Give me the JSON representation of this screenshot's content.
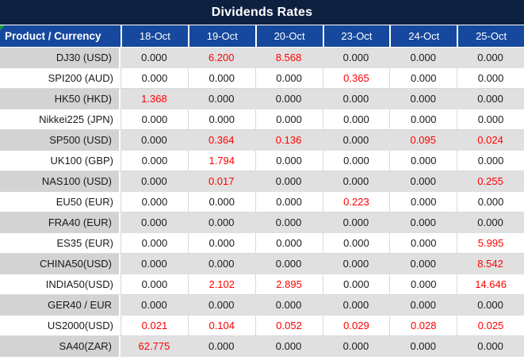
{
  "title": "Dividends Rates",
  "table": {
    "product_header": "Product / Currency",
    "date_headers": [
      "18-Oct",
      "19-Oct",
      "20-Oct",
      "23-Oct",
      "24-Oct",
      "25-Oct"
    ],
    "rows": [
      {
        "product": "DJ30 (USD)",
        "values": [
          "0.000",
          "6.200",
          "8.568",
          "0.000",
          "0.000",
          "0.000"
        ]
      },
      {
        "product": "SPI200 (AUD)",
        "values": [
          "0.000",
          "0.000",
          "0.000",
          "0.365",
          "0.000",
          "0.000"
        ]
      },
      {
        "product": "HK50 (HKD)",
        "values": [
          "1.368",
          "0.000",
          "0.000",
          "0.000",
          "0.000",
          "0.000"
        ]
      },
      {
        "product": "Nikkei225 (JPN)",
        "values": [
          "0.000",
          "0.000",
          "0.000",
          "0.000",
          "0.000",
          "0.000"
        ]
      },
      {
        "product": "SP500 (USD)",
        "values": [
          "0.000",
          "0.364",
          "0.136",
          "0.000",
          "0.095",
          "0.024"
        ]
      },
      {
        "product": "UK100 (GBP)",
        "values": [
          "0.000",
          "1.794",
          "0.000",
          "0.000",
          "0.000",
          "0.000"
        ]
      },
      {
        "product": "NAS100 (USD)",
        "values": [
          "0.000",
          "0.017",
          "0.000",
          "0.000",
          "0.000",
          "0.255"
        ]
      },
      {
        "product": "EU50 (EUR)",
        "values": [
          "0.000",
          "0.000",
          "0.000",
          "0.223",
          "0.000",
          "0.000"
        ]
      },
      {
        "product": "FRA40 (EUR)",
        "values": [
          "0.000",
          "0.000",
          "0.000",
          "0.000",
          "0.000",
          "0.000"
        ]
      },
      {
        "product": "ES35 (EUR)",
        "values": [
          "0.000",
          "0.000",
          "0.000",
          "0.000",
          "0.000",
          "5.995"
        ]
      },
      {
        "product": "CHINA50(USD)",
        "values": [
          "0.000",
          "0.000",
          "0.000",
          "0.000",
          "0.000",
          "8.542"
        ]
      },
      {
        "product": "INDIA50(USD)",
        "values": [
          "0.000",
          "2.102",
          "2.895",
          "0.000",
          "0.000",
          "14.646"
        ]
      },
      {
        "product": "GER40 / EUR",
        "values": [
          "0.000",
          "0.000",
          "0.000",
          "0.000",
          "0.000",
          "0.000"
        ]
      },
      {
        "product": "US2000(USD)",
        "values": [
          "0.021",
          "0.104",
          "0.052",
          "0.029",
          "0.028",
          "0.025"
        ]
      },
      {
        "product": "SA40(ZAR)",
        "values": [
          "62.775",
          "0.000",
          "0.000",
          "0.000",
          "0.000",
          "0.000"
        ]
      }
    ]
  },
  "colors": {
    "title_bg": "#0e2040",
    "header_bg": "#16489d",
    "gray_row_product": "#d3d3d3",
    "gray_row_data": "#e0e0e0",
    "gridline": "#d9d9d9",
    "red_value": "#ff0000",
    "value_text": "#1a1a1a",
    "corner_marker_green": "#1f9d4b"
  }
}
